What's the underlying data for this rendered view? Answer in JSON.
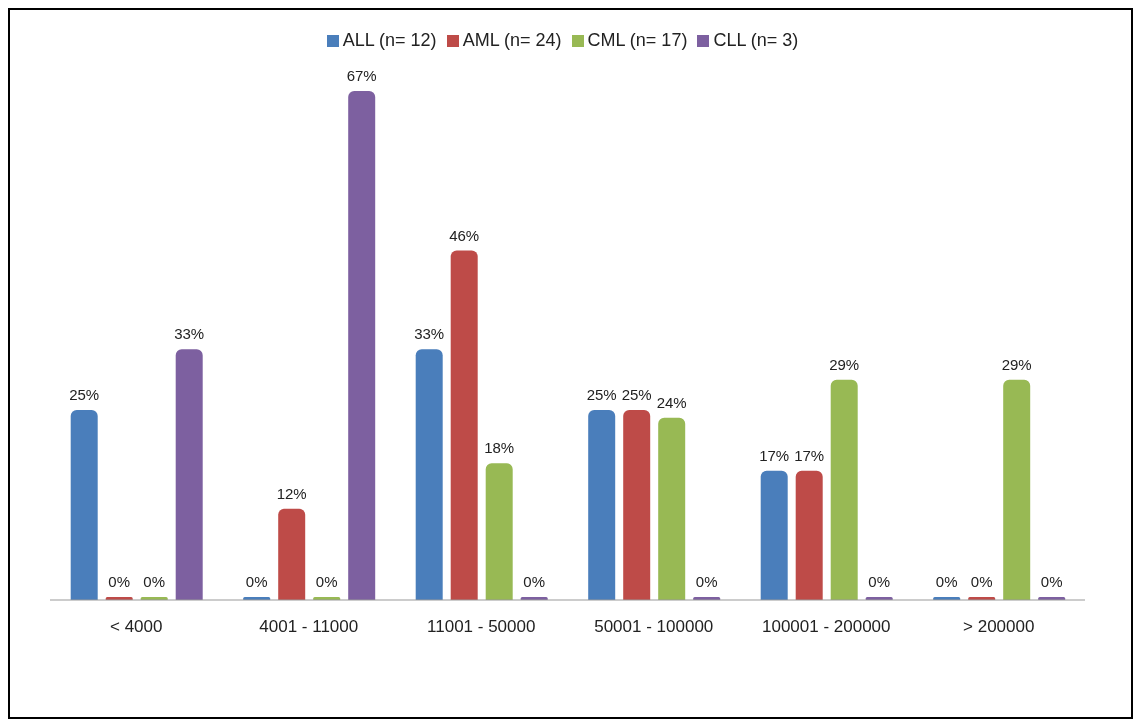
{
  "chart_data": {
    "type": "bar",
    "categories": [
      "< 4000",
      "4001 - 11000",
      "11001 - 50000",
      "50001 - 100000",
      "100001 - 200000",
      "> 200000"
    ],
    "series": [
      {
        "name": "ALL (n= 12)",
        "color": "#4a7ebb",
        "values": [
          25,
          0,
          33,
          25,
          17,
          0
        ],
        "value_labels": [
          "25%",
          "0%",
          "33%",
          "25%",
          "17%",
          "0%"
        ]
      },
      {
        "name": "AML (n= 24)",
        "color": "#be4b48",
        "values": [
          0,
          12,
          46,
          25,
          17,
          0
        ],
        "value_labels": [
          "0%",
          "12%",
          "46%",
          "25%",
          "17%",
          "0%"
        ]
      },
      {
        "name": "CML (n= 17)",
        "color": "#98b954",
        "values": [
          0,
          0,
          18,
          24,
          29,
          29
        ],
        "value_labels": [
          "0%",
          "0%",
          "18%",
          "24%",
          "29%",
          "29%"
        ]
      },
      {
        "name": "CLL (n= 3)",
        "color": "#7d60a0",
        "values": [
          33,
          67,
          0,
          0,
          0,
          0
        ],
        "value_labels": [
          "33%",
          "67%",
          "0%",
          "0%",
          "0%",
          "0%"
        ]
      }
    ],
    "legend": "top",
    "grid": false,
    "tick_labels": "x"
  }
}
